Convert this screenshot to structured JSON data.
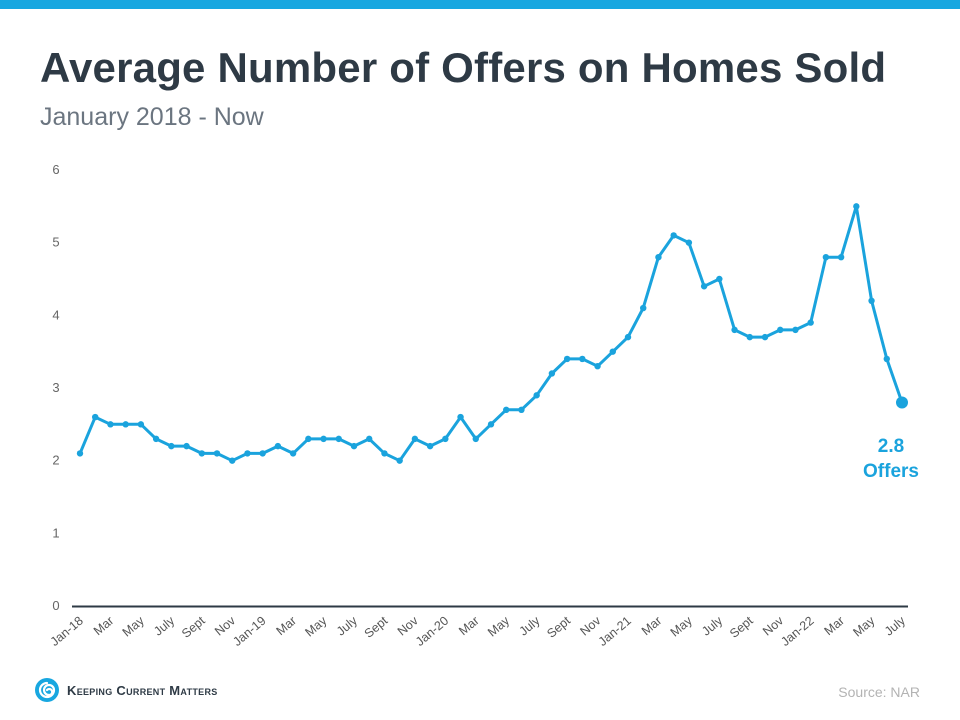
{
  "header": {
    "title": "Average Number of Offers on Homes Sold",
    "subtitle": "January 2018 - Now"
  },
  "footer": {
    "brand": "Keeping Current Matters",
    "source": "Source: NAR"
  },
  "colors": {
    "accent": "#18a7e0",
    "line": "#1aa3dd",
    "title": "#2e3a45",
    "axis": "#2e3a45"
  },
  "icons": {
    "logo": "spiral-swirl-icon"
  },
  "chart_data": {
    "type": "line",
    "title": "Average Number of Offers on Homes Sold",
    "subtitle": "January 2018 - Now",
    "xlabel": "",
    "ylabel": "",
    "ylim": [
      0,
      6
    ],
    "yticks": [
      0,
      1,
      2,
      3,
      4,
      5,
      6
    ],
    "grid": false,
    "x_tick_labels": [
      "Jan-18",
      "Mar",
      "May",
      "July",
      "Sept",
      "Nov",
      "Jan-19",
      "Mar",
      "May",
      "July",
      "Sept",
      "Nov",
      "Jan-20",
      "Mar",
      "May",
      "July",
      "Sept",
      "Nov",
      "Jan-21",
      "Mar",
      "May",
      "July",
      "Sept",
      "Nov",
      "Jan-22",
      "Mar",
      "May",
      "July"
    ],
    "series": [
      {
        "name": "Average Number of Offers",
        "values": [
          2.1,
          2.6,
          2.5,
          2.5,
          2.5,
          2.3,
          2.2,
          2.2,
          2.1,
          2.1,
          2.0,
          2.1,
          2.1,
          2.2,
          2.1,
          2.3,
          2.3,
          2.3,
          2.2,
          2.3,
          2.1,
          2.0,
          2.3,
          2.2,
          2.3,
          2.6,
          2.3,
          2.5,
          2.7,
          2.7,
          2.9,
          3.2,
          3.4,
          3.4,
          3.3,
          3.5,
          3.7,
          4.1,
          4.8,
          5.1,
          5.0,
          4.4,
          4.5,
          3.8,
          3.7,
          3.7,
          3.8,
          3.8,
          3.9,
          4.8,
          4.8,
          5.5,
          4.2,
          3.4,
          2.8
        ]
      }
    ],
    "annotation": {
      "value": "2.8",
      "label": "Offers"
    }
  }
}
